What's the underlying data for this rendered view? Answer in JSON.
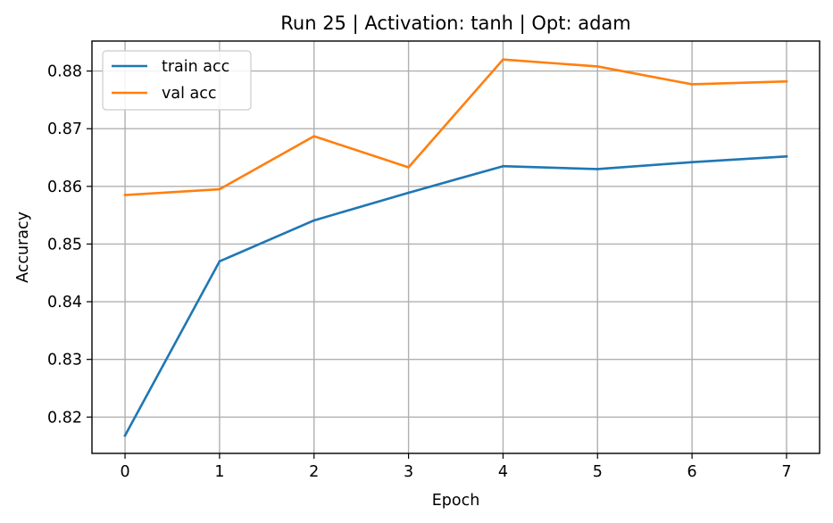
{
  "chart_data": {
    "type": "line",
    "title": "Run 25 | Activation: tanh | Opt: adam",
    "xlabel": "Epoch",
    "ylabel": "Accuracy",
    "x": [
      0,
      1,
      2,
      3,
      4,
      5,
      6,
      7
    ],
    "xlim": [
      -0.35,
      7.35
    ],
    "ylim": [
      0.8137,
      0.8852
    ],
    "xticks": [
      0,
      1,
      2,
      3,
      4,
      5,
      6,
      7
    ],
    "yticks": [
      0.82,
      0.83,
      0.84,
      0.85,
      0.86,
      0.87,
      0.88
    ],
    "ytick_labels": [
      "0.82",
      "0.83",
      "0.84",
      "0.85",
      "0.86",
      "0.87",
      "0.88"
    ],
    "grid": true,
    "legend_position": "top-left",
    "series": [
      {
        "name": "train acc",
        "color": "#1f77b4",
        "values": [
          0.8168,
          0.847,
          0.8541,
          0.8589,
          0.8635,
          0.863,
          0.8642,
          0.8652
        ]
      },
      {
        "name": "val acc",
        "color": "#ff7f0e",
        "values": [
          0.8585,
          0.8595,
          0.8687,
          0.8633,
          0.882,
          0.8808,
          0.8777,
          0.8782
        ]
      }
    ]
  }
}
